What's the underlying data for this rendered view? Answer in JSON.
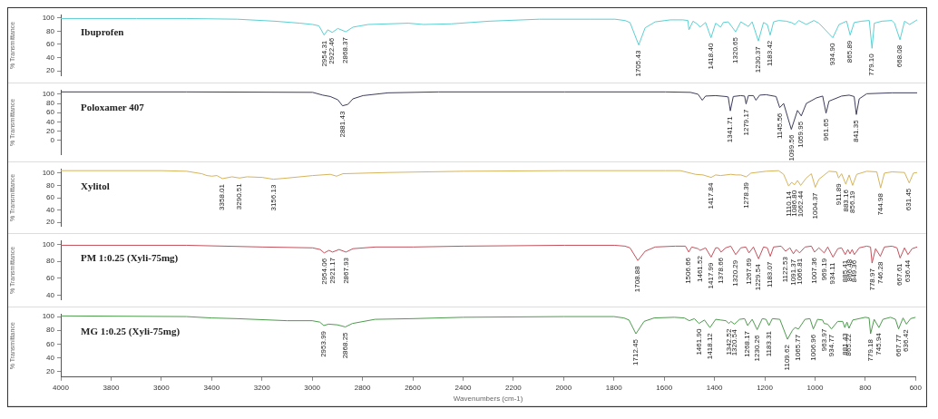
{
  "chart_data": [
    {
      "type": "line",
      "ylabel": "% Transmittance",
      "tick_labels": "y",
      "xlim": [
        4000,
        600
      ],
      "xticks": [
        4000,
        3800,
        3600,
        3400,
        3200,
        3000,
        2800,
        2600,
        2400,
        2200,
        2000,
        1800,
        1600,
        1400,
        1200,
        1000,
        800,
        600
      ],
      "ylim": [
        13,
        104
      ],
      "yticks": [
        20,
        40,
        60,
        80,
        100
      ],
      "x": [
        4000,
        3700,
        3500,
        3300,
        3150,
        3050,
        3000,
        2975,
        2954.31,
        2940,
        2922.46,
        2900,
        2868.37,
        2840,
        2780,
        2700,
        2620,
        2560,
        2450,
        2300,
        2100,
        1900,
        1800,
        1760,
        1740,
        1705.43,
        1680,
        1640,
        1580,
        1530,
        1510,
        1506,
        1490,
        1470,
        1462,
        1440,
        1418.4,
        1400,
        1380,
        1370,
        1350,
        1320.65,
        1300,
        1270,
        1255,
        1230.37,
        1210,
        1195,
        1183.42,
        1170,
        1150,
        1120,
        1100,
        1085,
        1070,
        1040,
        1010,
        990,
        934.9,
        910,
        880,
        865.89,
        850,
        820,
        790,
        779.1,
        770,
        740,
        700,
        690,
        668.08,
        650,
        630,
        600
      ],
      "series": [
        {
          "name": "Ibuprofen",
          "color": "#5ccfd2",
          "values": [
            99,
            99,
            99,
            98,
            95,
            92,
            90,
            88,
            74,
            82,
            78,
            84,
            79,
            86,
            90,
            91,
            92,
            90,
            91,
            95,
            98,
            98,
            98,
            96,
            93,
            59,
            85,
            94,
            97,
            97,
            96,
            82,
            95,
            90,
            86,
            93,
            70,
            92,
            86,
            93,
            94,
            79,
            94,
            87,
            94,
            65,
            93,
            90,
            74,
            94,
            96,
            95,
            93,
            90,
            96,
            90,
            96,
            92,
            70,
            90,
            95,
            74,
            93,
            95,
            96,
            54,
            92,
            95,
            96,
            92,
            67,
            95,
            90,
            97
          ]
        }
      ],
      "annotations": [
        {
          "text": "2954.31",
          "x": 2954.31,
          "y": 74
        },
        {
          "text": "2922.46",
          "x": 2922.46,
          "y": 78
        },
        {
          "text": "2868.37",
          "x": 2868.37,
          "y": 79
        },
        {
          "text": "1705.43",
          "x": 1705.43,
          "y": 59
        },
        {
          "text": "1418.40",
          "x": 1418.4,
          "y": 70
        },
        {
          "text": "1320.65",
          "x": 1320.65,
          "y": 79
        },
        {
          "text": "1230.37",
          "x": 1230.37,
          "y": 65
        },
        {
          "text": "1183.42",
          "x": 1183.42,
          "y": 74
        },
        {
          "text": "934.90",
          "x": 934.9,
          "y": 70
        },
        {
          "text": "865.89",
          "x": 865.89,
          "y": 74
        },
        {
          "text": "779.10",
          "x": 779.1,
          "y": 54
        },
        {
          "text": "668.08",
          "x": 668.08,
          "y": 67
        }
      ]
    },
    {
      "type": "line",
      "ylabel": "% Transmittance",
      "tick_labels": "y",
      "xlim": [
        4000,
        600
      ],
      "xticks": [
        4000,
        3800,
        3600,
        3400,
        3200,
        3000,
        2800,
        2600,
        2400,
        2200,
        2000,
        1800,
        1600,
        1400,
        1200,
        1000,
        800,
        600
      ],
      "ylim": [
        -30,
        108
      ],
      "yticks": [
        0,
        20,
        40,
        60,
        80,
        100
      ],
      "x": [
        4000,
        3500,
        3000,
        2960,
        2930,
        2900,
        2881.43,
        2860,
        2840,
        2800,
        2700,
        2500,
        2000,
        1600,
        1500,
        1470,
        1453,
        1440,
        1400,
        1360,
        1350,
        1341.71,
        1330,
        1300,
        1285,
        1279.17,
        1270,
        1250,
        1240,
        1225,
        1200,
        1160,
        1145.56,
        1130,
        1099.56,
        1075,
        1059.95,
        1040,
        1000,
        975,
        961.65,
        950,
        900,
        870,
        850,
        841.35,
        830,
        800,
        700,
        600
      ],
      "series": [
        {
          "name": "Poloxamer 407",
          "color": "#3c3c5c",
          "values": [
            105,
            105,
            104,
            98,
            95,
            88,
            75,
            78,
            90,
            97,
            103,
            105,
            105,
            105,
            104,
            100,
            87,
            96,
            97,
            95,
            94,
            64,
            95,
            97,
            96,
            79,
            97,
            97,
            87,
            98,
            99,
            95,
            71,
            80,
            24,
            65,
            53,
            80,
            92,
            96,
            59,
            85,
            96,
            98,
            95,
            56,
            90,
            101,
            103,
            103
          ]
        }
      ],
      "annotations": [
        {
          "text": "2881.43",
          "x": 2881.43,
          "y": 75
        },
        {
          "text": "1341.71",
          "x": 1341.71,
          "y": 64
        },
        {
          "text": "1279.17",
          "x": 1279.17,
          "y": 79
        },
        {
          "text": "1145.56",
          "x": 1145.56,
          "y": 71
        },
        {
          "text": "1099.56",
          "x": 1099.56,
          "y": 24
        },
        {
          "text": "1059.95",
          "x": 1059.95,
          "y": 53
        },
        {
          "text": "961.65",
          "x": 961.65,
          "y": 59
        },
        {
          "text": "841.35",
          "x": 841.35,
          "y": 56
        }
      ]
    },
    {
      "type": "line",
      "ylabel": "% Transmittance",
      "tick_labels": "y",
      "xlim": [
        4000,
        600
      ],
      "xticks": [
        4000,
        3800,
        3600,
        3400,
        3200,
        3000,
        2800,
        2600,
        2400,
        2200,
        2000,
        1800,
        1600,
        1400,
        1200,
        1000,
        800,
        600
      ],
      "ylim": [
        14,
        106
      ],
      "yticks": [
        20,
        40,
        60,
        80,
        100
      ],
      "x": [
        4000,
        3600,
        3500,
        3440,
        3420,
        3400,
        3380,
        3358.01,
        3320,
        3290.51,
        3260,
        3200,
        3156.13,
        3100,
        3000,
        2930,
        2905,
        2880,
        2700,
        2400,
        2000,
        1600,
        1540,
        1480,
        1450,
        1417.84,
        1400,
        1380,
        1340,
        1320,
        1300,
        1278.39,
        1260,
        1200,
        1150,
        1130,
        1110.14,
        1098,
        1086.8,
        1075,
        1062.44,
        1040,
        1020,
        1004.37,
        990,
        950,
        920,
        911.89,
        900,
        883.16,
        870,
        856.19,
        840,
        800,
        760,
        744.98,
        730,
        700,
        650,
        631.45,
        615,
        600
      ],
      "series": [
        {
          "name": "Xylitol",
          "color": "#d6b45c",
          "values": [
            104,
            104,
            103,
            99,
            96,
            95,
            96,
            91,
            94,
            92,
            94,
            93,
            90,
            92,
            96,
            98,
            95,
            99,
            101,
            103,
            104,
            104,
            104,
            98,
            97,
            93,
            97,
            96,
            98,
            97,
            97,
            94,
            100,
            103,
            104,
            98,
            79,
            85,
            81,
            88,
            80,
            92,
            99,
            77,
            90,
            103,
            102,
            92,
            99,
            82,
            97,
            80,
            98,
            103,
            102,
            76,
            100,
            102,
            101,
            84,
            100,
            101
          ]
        }
      ],
      "annotations": [
        {
          "text": "3358.01",
          "x": 3358.01,
          "y": 91
        },
        {
          "text": "3290.51",
          "x": 3290.51,
          "y": 92
        },
        {
          "text": "3156.13",
          "x": 3156.13,
          "y": 90
        },
        {
          "text": "1417.84",
          "x": 1417.84,
          "y": 93
        },
        {
          "text": "1278.39",
          "x": 1278.39,
          "y": 94
        },
        {
          "text": "1110.14",
          "x": 1110.14,
          "y": 79
        },
        {
          "text": "1086.80",
          "x": 1086.8,
          "y": 81
        },
        {
          "text": "1062.44",
          "x": 1062.44,
          "y": 80
        },
        {
          "text": "1004.37",
          "x": 1004.37,
          "y": 77
        },
        {
          "text": "911.89",
          "x": 911.89,
          "y": 92
        },
        {
          "text": "883.16",
          "x": 883.16,
          "y": 82
        },
        {
          "text": "856.19",
          "x": 856.19,
          "y": 80
        },
        {
          "text": "744.98",
          "x": 744.98,
          "y": 76
        },
        {
          "text": "631.45",
          "x": 631.45,
          "y": 84
        }
      ]
    },
    {
      "type": "line",
      "ylabel": "% Transmittance",
      "tick_labels": "y",
      "xlim": [
        4000,
        600
      ],
      "xticks": [
        4000,
        3800,
        3600,
        3400,
        3200,
        3000,
        2800,
        2600,
        2400,
        2200,
        2000,
        1800,
        1600,
        1400,
        1200,
        1000,
        800,
        600
      ],
      "ylim": [
        35,
        104
      ],
      "yticks": [
        40,
        60,
        80,
        100
      ],
      "x": [
        4000,
        3500,
        3200,
        3000,
        2970,
        2954.06,
        2935,
        2921.17,
        2895,
        2867.93,
        2840,
        2750,
        2600,
        2400,
        2000,
        1800,
        1760,
        1740,
        1708.88,
        1680,
        1640,
        1560,
        1520,
        1506.66,
        1495,
        1470,
        1461.52,
        1440,
        1417.99,
        1400,
        1390,
        1378.66,
        1360,
        1340,
        1320.29,
        1300,
        1280,
        1267.69,
        1250,
        1229.54,
        1210,
        1195,
        1183.07,
        1170,
        1140,
        1122.53,
        1105,
        1091.37,
        1080,
        1066.81,
        1045,
        1020,
        1007.36,
        990,
        969.19,
        955,
        934.11,
        915,
        900,
        885.41,
        875,
        866.48,
        858,
        849.36,
        830,
        800,
        785,
        778.97,
        765,
        746.28,
        730,
        700,
        680,
        667.61,
        650,
        636.44,
        620,
        600
      ],
      "series": [
        {
          "name": "PM 1:0.25 (Xyli-75mg)",
          "color": "#c2515c",
          "values": [
            99,
            99,
            97,
            96,
            94,
            90,
            93,
            91,
            94,
            91,
            95,
            97,
            97,
            98,
            99,
            99,
            98,
            96,
            81,
            92,
            97,
            98,
            98,
            91,
            97,
            95,
            93,
            96,
            85,
            96,
            96,
            91,
            96,
            98,
            88,
            96,
            97,
            90,
            97,
            83,
            97,
            96,
            86,
            97,
            98,
            92,
            96,
            89,
            94,
            90,
            97,
            98,
            91,
            96,
            90,
            97,
            85,
            95,
            96,
            88,
            94,
            89,
            94,
            88,
            96,
            98,
            97,
            78,
            95,
            86,
            97,
            98,
            96,
            84,
            96,
            88,
            95,
            97
          ]
        }
      ],
      "annotations": [
        {
          "text": "2954.06",
          "x": 2954.06,
          "y": 90
        },
        {
          "text": "2921.17",
          "x": 2921.17,
          "y": 91
        },
        {
          "text": "2867.93",
          "x": 2867.93,
          "y": 91
        },
        {
          "text": "1708.88",
          "x": 1708.88,
          "y": 81
        },
        {
          "text": "1506.66",
          "x": 1506.66,
          "y": 91
        },
        {
          "text": "1461.52",
          "x": 1461.52,
          "y": 93
        },
        {
          "text": "1417.99",
          "x": 1417.99,
          "y": 85
        },
        {
          "text": "1378.66",
          "x": 1378.66,
          "y": 91
        },
        {
          "text": "1320.29",
          "x": 1320.29,
          "y": 88
        },
        {
          "text": "1267.69",
          "x": 1267.69,
          "y": 90
        },
        {
          "text": "1229.54",
          "x": 1229.54,
          "y": 83
        },
        {
          "text": "1183.07",
          "x": 1183.07,
          "y": 86
        },
        {
          "text": "1122.53",
          "x": 1122.53,
          "y": 92
        },
        {
          "text": "1091.37",
          "x": 1091.37,
          "y": 89
        },
        {
          "text": "1066.81",
          "x": 1066.81,
          "y": 90
        },
        {
          "text": "1007.36",
          "x": 1007.36,
          "y": 91
        },
        {
          "text": "969.19",
          "x": 969.19,
          "y": 90
        },
        {
          "text": "934.11",
          "x": 934.11,
          "y": 85
        },
        {
          "text": "885.41",
          "x": 885.41,
          "y": 88
        },
        {
          "text": "866.48",
          "x": 866.48,
          "y": 89
        },
        {
          "text": "849.36",
          "x": 849.36,
          "y": 88
        },
        {
          "text": "778.97",
          "x": 778.97,
          "y": 78
        },
        {
          "text": "746.28",
          "x": 746.28,
          "y": 86
        },
        {
          "text": "667.61",
          "x": 667.61,
          "y": 84
        },
        {
          "text": "636.44",
          "x": 636.44,
          "y": 88
        }
      ]
    },
    {
      "type": "line",
      "ylabel": "% Transmittance",
      "xlabel": "Wavenumbers (cm-1)",
      "xlim": [
        4000,
        600
      ],
      "xticks": [
        4000,
        3800,
        3600,
        3400,
        3200,
        3000,
        2800,
        2600,
        2400,
        2200,
        2000,
        1800,
        1600,
        1400,
        1200,
        1000,
        800,
        600
      ],
      "ylim": [
        12,
        103
      ],
      "yticks": [
        20,
        40,
        60,
        80,
        100
      ],
      "x": [
        4000,
        3500,
        3400,
        3300,
        3100,
        3000,
        2970,
        2953.99,
        2935,
        2900,
        2868.25,
        2840,
        2750,
        2600,
        2400,
        2000,
        1800,
        1760,
        1740,
        1712.45,
        1680,
        1640,
        1560,
        1520,
        1500,
        1480,
        1461.9,
        1440,
        1418.12,
        1395,
        1375,
        1355,
        1342.52,
        1335,
        1320.54,
        1300,
        1280,
        1268.17,
        1250,
        1230.26,
        1210,
        1195,
        1183.31,
        1170,
        1140,
        1109.62,
        1090,
        1080,
        1065.77,
        1040,
        1020,
        1006.96,
        990,
        970,
        963.97,
        950,
        934.77,
        910,
        890,
        881.43,
        873,
        865.22,
        850,
        800,
        785,
        779.18,
        765,
        745.94,
        730,
        700,
        680,
        667.77,
        650,
        636.42,
        620,
        600
      ],
      "series": [
        {
          "name": "MG 1:0.25 (Xyli-75mg)",
          "color": "#4e9a4e",
          "values": [
            101,
            100,
            98,
            97,
            94,
            94,
            92,
            87,
            89,
            88,
            85,
            90,
            96,
            97,
            99,
            100,
            100,
            98,
            95,
            75,
            93,
            98,
            99,
            98,
            94,
            97,
            90,
            95,
            84,
            96,
            95,
            94,
            90,
            93,
            89,
            96,
            97,
            87,
            96,
            81,
            97,
            96,
            87,
            97,
            96,
            67,
            80,
            84,
            82,
            96,
            97,
            82,
            96,
            95,
            90,
            89,
            82,
            93,
            93,
            84,
            92,
            83,
            95,
            99,
            98,
            75,
            96,
            84,
            96,
            99,
            96,
            82,
            98,
            89,
            97,
            99
          ]
        }
      ],
      "annotations": [
        {
          "text": "2953.99",
          "x": 2953.99,
          "y": 87
        },
        {
          "text": "2868.25",
          "x": 2868.25,
          "y": 85
        },
        {
          "text": "1712.45",
          "x": 1712.45,
          "y": 75
        },
        {
          "text": "1461.90",
          "x": 1461.9,
          "y": 90
        },
        {
          "text": "1418.12",
          "x": 1418.12,
          "y": 84
        },
        {
          "text": "1342.52",
          "x": 1342.52,
          "y": 90
        },
        {
          "text": "1320.54",
          "x": 1320.54,
          "y": 89
        },
        {
          "text": "1268.17",
          "x": 1268.17,
          "y": 87
        },
        {
          "text": "1230.26",
          "x": 1230.26,
          "y": 81
        },
        {
          "text": "1183.31",
          "x": 1183.31,
          "y": 87
        },
        {
          "text": "1109.62",
          "x": 1109.62,
          "y": 67
        },
        {
          "text": "1065.77",
          "x": 1065.77,
          "y": 82
        },
        {
          "text": "1006.96",
          "x": 1006.96,
          "y": 82
        },
        {
          "text": "963.97",
          "x": 963.97,
          "y": 90
        },
        {
          "text": "934.77",
          "x": 934.77,
          "y": 82
        },
        {
          "text": "881.43",
          "x": 881.43,
          "y": 84
        },
        {
          "text": "865.22",
          "x": 865.22,
          "y": 83
        },
        {
          "text": "779.18",
          "x": 779.18,
          "y": 75
        },
        {
          "text": "745.94",
          "x": 745.94,
          "y": 84
        },
        {
          "text": "667.77",
          "x": 667.77,
          "y": 82
        },
        {
          "text": "636.42",
          "x": 636.42,
          "y": 89
        }
      ]
    }
  ]
}
